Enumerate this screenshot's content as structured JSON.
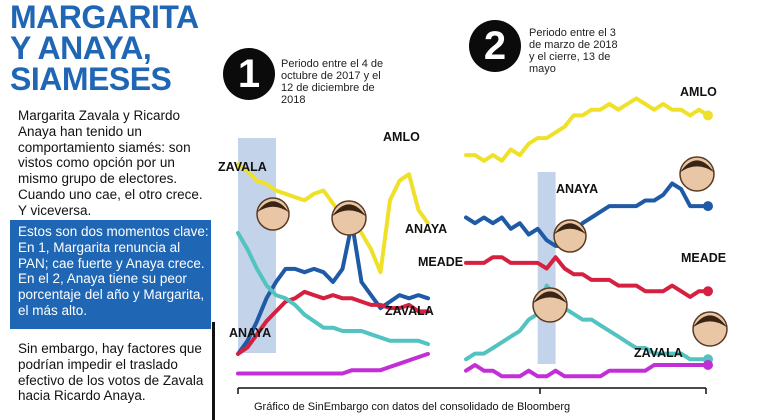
{
  "headline": {
    "line1": "MARGARITA",
    "line2": "Y ANAYA,",
    "line3": "SIAMESES"
  },
  "intro_text": "Margarita Zavala y Ricardo Anaya han tenido un comportamiento siamés: son vistos como opción por un mismo grupo de electores. Cuando uno cae, el otro crece. Y viceversa.",
  "key_moments_text": "Estos son dos momentos clave: En 1, Margarita renuncia al PAN; cae fuerte y Anaya crece. En el 2, Anaya tiene su peor porcentaje del año y Margarita, el más alto.",
  "closing_text": "Sin embargo, hay factores que podrían impedir el traslado efectivo de los votos de Zavala hacia Ricardo Anaya.",
  "source_note": "Gráfico de SinEmbargo con datos del consolidado de Bloomberg",
  "colors": {
    "brand_blue": "#1f66b4",
    "amlo": "#efe12a",
    "anaya": "#1f5aa6",
    "meade": "#d6203f",
    "zavala": "#52c3c1",
    "fifth": "#c32fd6",
    "highlight": "#b9cde6"
  },
  "chart_data": [
    {
      "type": "line",
      "badge": "1",
      "period": "Periodo entre el 4 de octubre de 2017 y el 12 de diciembre de 2018",
      "labels": {
        "amlo": "AMLO",
        "zavala": "ZAVALA",
        "anaya_top": "ANAYA",
        "anaya_bottom": "ANAYA",
        "meade": "MEADE",
        "zavala_bottom": "ZAVALA"
      },
      "x": [
        0,
        1,
        2,
        3,
        4,
        5,
        6,
        7,
        8,
        9,
        10,
        11,
        12,
        13,
        14,
        15,
        16,
        17,
        18,
        19,
        20
      ],
      "series": [
        {
          "key": "amlo",
          "values": [
            66,
            64,
            61,
            60,
            58,
            57,
            56,
            55,
            57,
            58,
            54,
            50,
            49,
            45,
            40,
            33,
            55,
            61,
            63,
            52,
            48
          ]
        },
        {
          "key": "anaya",
          "values": [
            8,
            12,
            18,
            25,
            30,
            34,
            34,
            33,
            34,
            33,
            30,
            34,
            48,
            30,
            26,
            22,
            24,
            26,
            25,
            26,
            25
          ]
        },
        {
          "key": "meade",
          "values": [
            8,
            10,
            14,
            18,
            21,
            24,
            25,
            27,
            26,
            25,
            26,
            25,
            25,
            24,
            23,
            23,
            22,
            22,
            23,
            21,
            21
          ]
        },
        {
          "key": "zavala",
          "values": [
            45,
            40,
            34,
            29,
            26,
            25,
            23,
            20,
            18,
            16,
            16,
            15,
            15,
            15,
            14,
            13,
            12,
            12,
            12,
            12,
            11
          ]
        },
        {
          "key": "fifth",
          "values": [
            2,
            2,
            2,
            2,
            2,
            2,
            2,
            2,
            2,
            2,
            2,
            2,
            3,
            3,
            3,
            3,
            4,
            5,
            6,
            7,
            8
          ]
        }
      ],
      "highlight_range": [
        0,
        4
      ],
      "ylim": [
        0,
        75
      ]
    },
    {
      "type": "line",
      "badge": "2",
      "period": "Periodo entre el 3 de marzo de 2018 y el cierre, 13 de mayo",
      "labels": {
        "amlo": "AMLO",
        "anaya": "ANAYA",
        "meade": "MEADE",
        "zavala": "ZAVALA"
      },
      "x": [
        0,
        1,
        2,
        3,
        4,
        5,
        6,
        7,
        8,
        9,
        10,
        11,
        12,
        13,
        14,
        15,
        16,
        17,
        18,
        19,
        20,
        21,
        22,
        23,
        24,
        25,
        26,
        27
      ],
      "series": [
        {
          "key": "amlo",
          "values": [
            40,
            40,
            39,
            40,
            39,
            41,
            40,
            42,
            43,
            43,
            44,
            45,
            47,
            47,
            48,
            48,
            49,
            48,
            49,
            50,
            49,
            48,
            49,
            48,
            48,
            47,
            48,
            47
          ]
        },
        {
          "key": "anaya",
          "values": [
            29,
            28,
            29,
            28,
            29,
            27,
            28,
            26,
            27,
            25,
            24,
            24,
            26,
            28,
            29,
            30,
            31,
            31,
            31,
            31,
            32,
            32,
            33,
            35,
            34,
            31,
            31,
            31
          ]
        },
        {
          "key": "meade",
          "values": [
            21,
            21,
            21,
            22,
            22,
            21,
            21,
            21,
            21,
            20,
            22,
            20,
            19,
            19,
            18,
            18,
            18,
            17,
            17,
            17,
            16,
            16,
            16,
            17,
            16,
            15,
            16,
            16
          ]
        },
        {
          "key": "zavala",
          "values": [
            4,
            5,
            5,
            6,
            7,
            8,
            9,
            11,
            12,
            17,
            15,
            13,
            12,
            11,
            11,
            10,
            9,
            8,
            7,
            6,
            6,
            5,
            5,
            5,
            5,
            4,
            4,
            4
          ]
        },
        {
          "key": "fifth",
          "values": [
            2,
            3,
            2,
            2,
            1,
            1,
            1,
            2,
            1,
            1,
            2,
            1,
            1,
            1,
            1,
            1,
            2,
            2,
            2,
            2,
            2,
            3,
            3,
            3,
            3,
            3,
            3,
            3
          ]
        }
      ],
      "highlight_range": [
        8,
        10
      ],
      "ylim": [
        0,
        55
      ]
    }
  ]
}
